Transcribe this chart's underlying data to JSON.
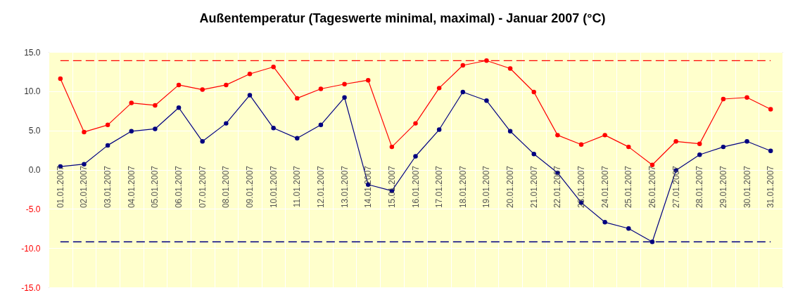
{
  "chart_data": {
    "type": "line",
    "title": "Außentemperatur (Tageswerte minimal, maximal) - Januar 2007 (°C)",
    "categories": [
      "01.01.2007",
      "02.01.2007",
      "03.01.2007",
      "04.01.2007",
      "05.01.2007",
      "06.01.2007",
      "07.01.2007",
      "08.01.2007",
      "09.01.2007",
      "10.01.2007",
      "11.01.2007",
      "12.01.2007",
      "13.01.2007",
      "14.01.2007",
      "15.01.2007",
      "16.01.2007",
      "17.01.2007",
      "18.01.2007",
      "19.01.2007",
      "20.01.2007",
      "21.01.2007",
      "22.01.2007",
      "23.01.2007",
      "24.01.2007",
      "25.01.2007",
      "26.01.2007",
      "27.01.2007",
      "28.01.2007",
      "29.01.2007",
      "30.01.2007",
      "31.01.2007"
    ],
    "series": [
      {
        "color": "#000080",
        "values": [
          0.4,
          0.7,
          3.1,
          4.9,
          5.2,
          7.9,
          3.6,
          5.9,
          9.5,
          5.3,
          4.0,
          5.7,
          9.2,
          -1.9,
          -2.7,
          1.7,
          5.1,
          9.9,
          8.8,
          4.9,
          2.0,
          -0.4,
          -4.2,
          -6.7,
          -7.5,
          -9.2,
          -0.1,
          1.9,
          2.9,
          3.6,
          2.4
        ]
      },
      {
        "color": "#ff0000",
        "values": [
          11.6,
          4.8,
          5.7,
          8.5,
          8.2,
          10.8,
          10.2,
          10.8,
          12.2,
          13.1,
          9.1,
          10.3,
          10.9,
          11.4,
          2.9,
          5.9,
          10.4,
          13.3,
          13.9,
          12.9,
          9.9,
          4.4,
          3.2,
          4.4,
          2.9,
          0.6,
          3.6,
          3.3,
          9.0,
          9.2,
          7.7
        ]
      }
    ],
    "ylim": [
      -15,
      15
    ],
    "yticks": [
      {
        "value": -15,
        "label": "-15.0"
      },
      {
        "value": -10,
        "label": "-10.0"
      },
      {
        "value": -5,
        "label": "-5.0"
      },
      {
        "value": 0,
        "label": "0.0"
      },
      {
        "value": 5,
        "label": "5.0"
      },
      {
        "value": 10,
        "label": "10.0"
      },
      {
        "value": 15,
        "label": "15.0"
      }
    ],
    "ref_lines": [
      {
        "axis": "y",
        "value": 13.9,
        "color": "#ff0000",
        "line_style": "dashed"
      },
      {
        "axis": "y",
        "value": -9.2,
        "color": "#000080",
        "line_style": "dashed"
      }
    ],
    "grid": true,
    "marker": "circle"
  }
}
